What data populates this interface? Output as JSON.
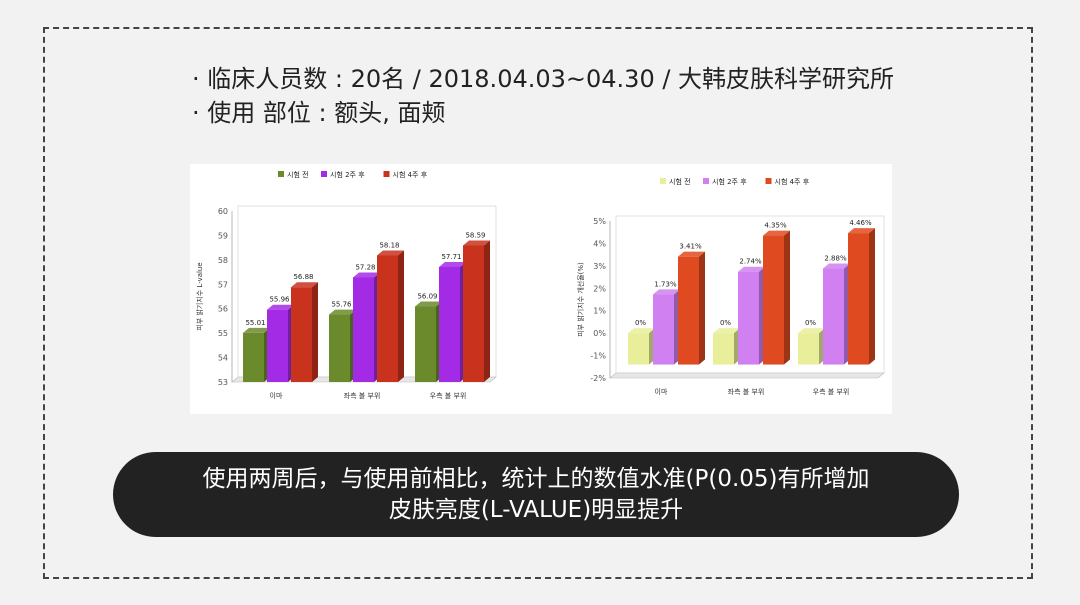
{
  "info": {
    "line1": "· 临床人员数 : 20名 / 2018.04.03~04.30 / 大韩皮肤科学研究所",
    "line2": "· 使用  部位 : 额头, 面颊"
  },
  "banner": {
    "line1": "使用两周后，与使用前相比，统计上的数值水准(P(0.05)有所增加",
    "line2": "皮肤亮度(L-VALUE)明显提升"
  },
  "colors": {
    "chart1": [
      "#6b8a2c",
      "#a32be6",
      "#c9331e"
    ],
    "chart2": [
      "#e8ee9a",
      "#d080f0",
      "#e04a20"
    ]
  },
  "chart_data": [
    {
      "type": "bar",
      "ylabel": "피부 밝기지수 L-value",
      "categories": [
        "이마",
        "좌측 볼 부위",
        "우측 볼 부위"
      ],
      "ylim": [
        53,
        60
      ],
      "yticks": [
        "53",
        "54",
        "55",
        "56",
        "57",
        "58",
        "59",
        "60"
      ],
      "series": [
        {
          "name": "시험 전",
          "values": [
            55.01,
            55.76,
            56.09
          ],
          "labels": [
            "55.01",
            "55.76",
            "56.09"
          ]
        },
        {
          "name": "시험 2주 후",
          "values": [
            55.96,
            57.28,
            57.71
          ],
          "labels": [
            "55.96",
            "57.28",
            "57.71"
          ]
        },
        {
          "name": "시험 4주 후",
          "values": [
            56.88,
            58.18,
            58.59
          ],
          "labels": [
            "56.88",
            "58.18",
            "58.59"
          ]
        }
      ],
      "legend": "top"
    },
    {
      "type": "bar",
      "ylabel": "피부 밝기지수 개선율(%)",
      "categories": [
        "이마",
        "좌측 볼 부위",
        "우측 볼 부위"
      ],
      "ylim": [
        -2,
        5
      ],
      "yticks": [
        "-2%",
        "-1%",
        "0%",
        "1%",
        "2%",
        "3%",
        "4%",
        "5%"
      ],
      "series": [
        {
          "name": "시험 전",
          "values": [
            0,
            0,
            0
          ],
          "labels": [
            "0%",
            "0%",
            "0%"
          ]
        },
        {
          "name": "시험 2주 후",
          "values": [
            1.73,
            2.74,
            2.88
          ],
          "labels": [
            "1.73%",
            "2.74%",
            "2.88%"
          ]
        },
        {
          "name": "시험 4주 후",
          "values": [
            3.41,
            4.35,
            4.46
          ],
          "labels": [
            "3.41%",
            "4.35%",
            "4.46%"
          ]
        }
      ],
      "legend": "top"
    }
  ]
}
